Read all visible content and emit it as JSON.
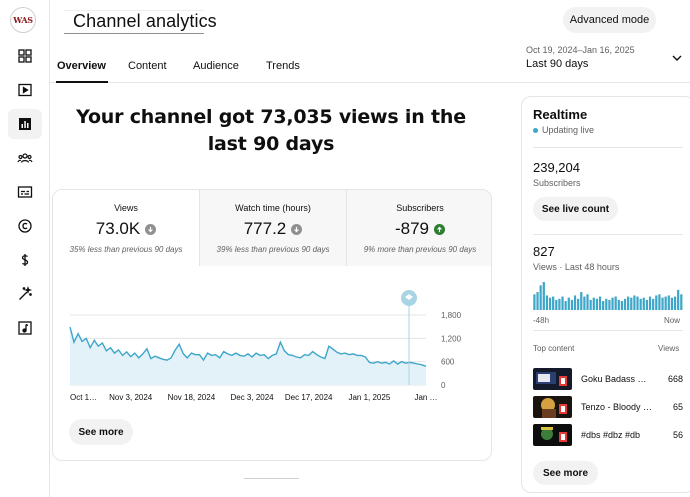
{
  "rail": {
    "logo_text": "WAS",
    "items": [
      {
        "icon": "dashboard-icon"
      },
      {
        "icon": "content-icon"
      },
      {
        "icon": "analytics-icon"
      },
      {
        "icon": "community-icon"
      },
      {
        "icon": "subtitles-icon"
      },
      {
        "icon": "copyright-icon"
      },
      {
        "icon": "earn-icon"
      },
      {
        "icon": "customization-icon"
      },
      {
        "icon": "audio-library-icon"
      }
    ]
  },
  "header": {
    "title": "Channel analytics",
    "advanced_mode_label": "Advanced mode"
  },
  "tabs": [
    {
      "label": "Overview",
      "active": true
    },
    {
      "label": "Content",
      "active": false
    },
    {
      "label": "Audience",
      "active": false
    },
    {
      "label": "Trends",
      "active": false
    }
  ],
  "date_picker": {
    "range": "Oct 19, 2024–Jan 16, 2025",
    "label": "Last 90 days"
  },
  "headline": "Your channel got 73,035 views in the last 90 days",
  "metrics": [
    {
      "label": "Views",
      "value": "73.0K",
      "trend": "down",
      "note": "35% less than previous 90 days"
    },
    {
      "label": "Watch time (hours)",
      "value": "777.2",
      "trend": "down",
      "note": "39% less than previous 90 days"
    },
    {
      "label": "Subscribers",
      "value": "-879",
      "trend": "up",
      "note": "9% more than previous 90 days"
    }
  ],
  "chart_data": {
    "type": "area",
    "title": "",
    "xlabel": "",
    "ylabel": "Views",
    "ylim": [
      0,
      1800
    ],
    "y_ticks": [
      "1,800",
      "1,200",
      "600",
      "0"
    ],
    "y_tick_values": [
      1800,
      1200,
      600,
      0
    ],
    "x_tick_labels": [
      "Oct 1…",
      "Nov 3, 2024",
      "Nov 18, 2024",
      "Dec 3, 2024",
      "Dec 17, 2024",
      "Jan 1, 2025",
      "Jan …"
    ],
    "x_tick_index": [
      1,
      15,
      30,
      45,
      59,
      74,
      88
    ],
    "series": [
      {
        "name": "Views",
        "values": [
          1490,
          1100,
          1320,
          1120,
          1200,
          960,
          1150,
          1000,
          1080,
          880,
          960,
          820,
          900,
          760,
          850,
          730,
          820,
          700,
          800,
          930,
          680,
          740,
          700,
          660,
          640,
          700,
          900,
          1050,
          800,
          700,
          820,
          780,
          780,
          640,
          820,
          760,
          780,
          700,
          860,
          800,
          760,
          820,
          760,
          740,
          800,
          720,
          820,
          760,
          780,
          680,
          760,
          800,
          1100,
          880,
          780,
          760,
          720,
          700,
          780,
          760,
          860,
          780,
          720,
          680,
          1000,
          920,
          840,
          800,
          820,
          780,
          800,
          760,
          760,
          720,
          580,
          560,
          600,
          560,
          580,
          540,
          620,
          540,
          600,
          560,
          580,
          560,
          540,
          520,
          480
        ]
      }
    ],
    "marker_index": 88
  },
  "main_see_more": "See more",
  "realtime": {
    "title": "Realtime",
    "live_label": "Updating live",
    "subscribers_value": "239,204",
    "subscribers_label": "Subscribers",
    "see_live_label": "See live count",
    "views_value": "827",
    "views_label": "Views · Last 48 hours",
    "hourly_views": [
      14,
      16,
      22,
      25,
      13,
      11,
      12,
      9,
      10,
      12,
      8,
      11,
      9,
      13,
      10,
      16,
      12,
      14,
      9,
      11,
      10,
      12,
      8,
      10,
      9,
      11,
      12,
      9,
      8,
      10,
      12,
      11,
      13,
      12,
      10,
      11,
      9,
      12,
      10,
      13,
      14,
      11,
      12,
      13,
      11,
      12,
      18,
      14
    ],
    "axis_left": "-48h",
    "axis_right": "Now",
    "top_content_label": "Top content",
    "views_col_label": "Views",
    "top_content": [
      {
        "title": "Goku Badass …",
        "views": "668"
      },
      {
        "title": "Tenzo - Bloody …",
        "views": "65"
      },
      {
        "title": "#dbs #dbz #db",
        "views": "56"
      }
    ],
    "see_more_label": "See more"
  },
  "colors": {
    "accent": "#3ea6c9",
    "chart_fill": "#e3f2f8",
    "trend_down": "#909090",
    "trend_up": "#2e7d32"
  }
}
